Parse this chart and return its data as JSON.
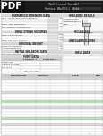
{
  "bg_color": "#f0f0f0",
  "white": "#ffffff",
  "dark_header": "#1a1a1a",
  "light_gray": "#e0e0e0",
  "mid_gray": "#c8c8c8",
  "dark_gray": "#888888",
  "line_color": "#aaaaaa",
  "green_row": "#b8e0b8",
  "section_header_bg": "#d8d8d8",
  "body_bg": "#f8f8f8",
  "input_box": "#e8e8e8",
  "table_header": "#cccccc",
  "text_dark": "#222222",
  "text_mid": "#555555"
}
